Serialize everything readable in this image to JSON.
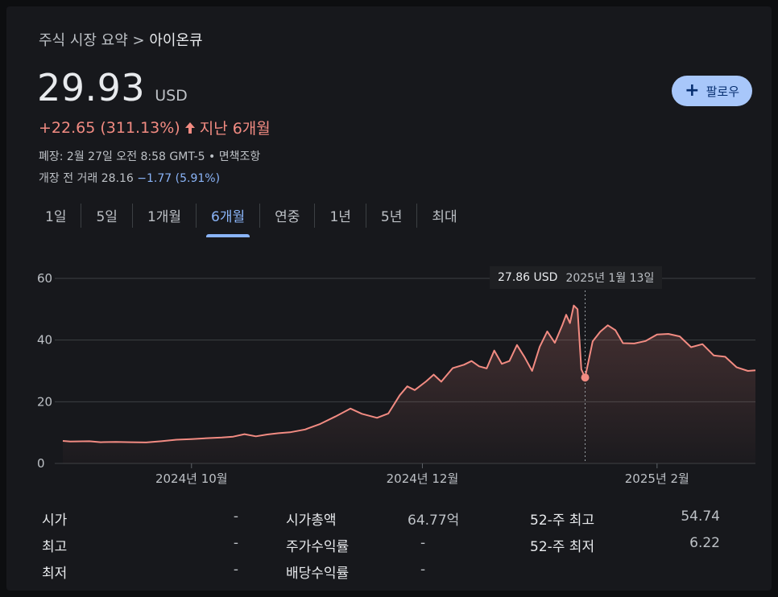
{
  "breadcrumb": {
    "parent": "주식 시장 요약",
    "separator": ">",
    "current": "아이온큐"
  },
  "quote": {
    "price": "29.93",
    "currency": "USD",
    "change": "+22.65 (311.13%)",
    "period": "지난 6개월",
    "close_info": "폐장: 2월 27일 오전 8:58 GMT-5 • 면책조항",
    "premarket_label": "개장 전 거래 28.16",
    "premarket_change": "−1.77 (5.91%)"
  },
  "follow_button": {
    "label": "팔로우",
    "icon": "plus-icon"
  },
  "tabs": [
    "1일",
    "5일",
    "1개월",
    "6개월",
    "연중",
    "1년",
    "5년",
    "최대"
  ],
  "active_tab": "6개월",
  "tooltip": {
    "price": "27.86 USD",
    "date": "2025년 1월 13일"
  },
  "colors": {
    "accent": "#8ab4f8",
    "up": "#f28b82",
    "line": "#f28b82",
    "button": "#a8c7fa"
  },
  "chart_data": {
    "type": "area",
    "y_ticks": [
      "60",
      "40",
      "20",
      "0"
    ],
    "x_ticks": [
      "2024년 10월",
      "2024년 12월",
      "2025년 2월"
    ],
    "ylim": [
      0,
      60
    ],
    "grid": true,
    "x_start": "2024-08-28",
    "x_end": "2025-02-27",
    "points": [
      [
        "2024-08-28",
        7.3
      ],
      [
        "2024-08-30",
        7.1
      ],
      [
        "2024-09-04",
        7.2
      ],
      [
        "2024-09-07",
        6.9
      ],
      [
        "2024-09-11",
        7.0
      ],
      [
        "2024-09-15",
        6.9
      ],
      [
        "2024-09-19",
        6.8
      ],
      [
        "2024-09-23",
        7.2
      ],
      [
        "2024-09-27",
        7.7
      ],
      [
        "2024-10-01",
        7.9
      ],
      [
        "2024-10-05",
        8.2
      ],
      [
        "2024-10-09",
        8.4
      ],
      [
        "2024-10-12",
        8.7
      ],
      [
        "2024-10-15",
        9.5
      ],
      [
        "2024-10-18",
        8.8
      ],
      [
        "2024-10-21",
        9.4
      ],
      [
        "2024-10-24",
        9.8
      ],
      [
        "2024-10-27",
        10.1
      ],
      [
        "2024-10-31",
        11.0
      ],
      [
        "2024-11-04",
        12.8
      ],
      [
        "2024-11-08",
        15.2
      ],
      [
        "2024-11-12",
        17.8
      ],
      [
        "2024-11-15",
        16.1
      ],
      [
        "2024-11-19",
        14.8
      ],
      [
        "2024-11-22",
        16.2
      ],
      [
        "2024-11-25",
        22.1
      ],
      [
        "2024-11-27",
        25.0
      ],
      [
        "2024-11-29",
        23.8
      ],
      [
        "2024-12-02",
        26.6
      ],
      [
        "2024-12-04",
        28.8
      ],
      [
        "2024-12-06",
        26.5
      ],
      [
        "2024-12-09",
        30.9
      ],
      [
        "2024-12-12",
        32.0
      ],
      [
        "2024-12-14",
        33.2
      ],
      [
        "2024-12-16",
        31.5
      ],
      [
        "2024-12-18",
        30.8
      ],
      [
        "2024-12-20",
        36.6
      ],
      [
        "2024-12-22",
        32.3
      ],
      [
        "2024-12-24",
        33.2
      ],
      [
        "2024-12-26",
        38.4
      ],
      [
        "2024-12-28",
        34.5
      ],
      [
        "2024-12-30",
        30.0
      ],
      [
        "2025-01-01",
        37.8
      ],
      [
        "2025-01-03",
        42.8
      ],
      [
        "2025-01-05",
        39.1
      ],
      [
        "2025-01-07",
        44.9
      ],
      [
        "2025-01-08",
        48.2
      ],
      [
        "2025-01-09",
        45.5
      ],
      [
        "2025-01-10",
        51.2
      ],
      [
        "2025-01-11",
        50.0
      ],
      [
        "2025-01-12",
        30.5
      ],
      [
        "2025-01-13",
        27.86
      ],
      [
        "2025-01-15",
        39.6
      ],
      [
        "2025-01-17",
        42.7
      ],
      [
        "2025-01-19",
        44.8
      ],
      [
        "2025-01-21",
        43.2
      ],
      [
        "2025-01-23",
        39.0
      ],
      [
        "2025-01-26",
        38.9
      ],
      [
        "2025-01-29",
        39.7
      ],
      [
        "2025-02-01",
        41.8
      ],
      [
        "2025-02-04",
        42.0
      ],
      [
        "2025-02-07",
        41.2
      ],
      [
        "2025-02-10",
        37.7
      ],
      [
        "2025-02-13",
        38.7
      ],
      [
        "2025-02-16",
        35.0
      ],
      [
        "2025-02-19",
        34.6
      ],
      [
        "2025-02-22",
        31.2
      ],
      [
        "2025-02-25",
        30.0
      ],
      [
        "2025-02-27",
        30.2
      ]
    ],
    "selected_point": [
      "2025-01-13",
      27.86
    ]
  },
  "stats": [
    {
      "label": "시가",
      "value": "-"
    },
    {
      "label": "최고",
      "value": "-"
    },
    {
      "label": "최저",
      "value": "-"
    },
    {
      "label": "시가총액",
      "value": "64.77억"
    },
    {
      "label": "주가수익률",
      "value": "-"
    },
    {
      "label": "배당수익률",
      "value": "-"
    },
    {
      "label": "52-주 최고",
      "value": "54.74"
    },
    {
      "label": "52-주 최저",
      "value": "6.22"
    }
  ]
}
